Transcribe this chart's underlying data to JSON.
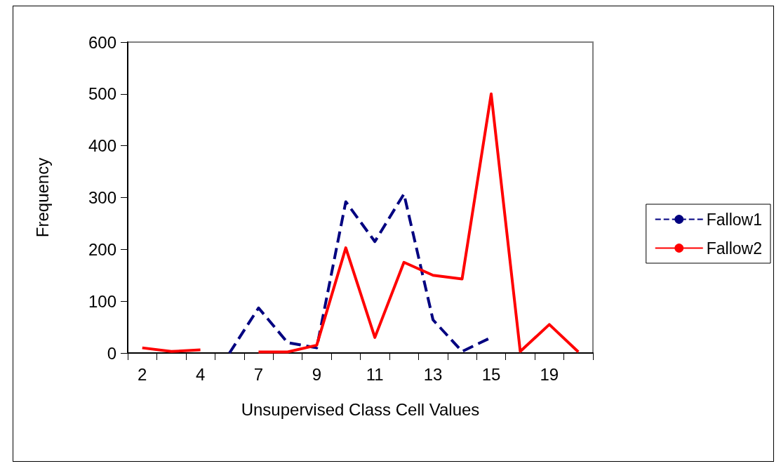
{
  "chart_data": {
    "type": "line",
    "xlabel": "Unsupervised Class Cell Values",
    "ylabel": "Frequency",
    "categories": [
      "2",
      null,
      "4",
      null,
      "7",
      null,
      "9",
      null,
      "11",
      null,
      "13",
      null,
      "15",
      null,
      "19",
      null
    ],
    "series": [
      {
        "name": "Fallow1",
        "color": "#000080",
        "line_style": "dashed",
        "values": [
          null,
          null,
          null,
          0,
          87,
          20,
          10,
          292,
          215,
          307,
          64,
          3,
          30,
          null,
          null,
          null
        ]
      },
      {
        "name": "Fallow2",
        "color": "#ff0000",
        "line_style": "solid",
        "values": [
          10,
          3,
          6,
          null,
          2,
          2,
          15,
          203,
          30,
          175,
          150,
          143,
          500,
          3,
          55,
          2
        ]
      }
    ],
    "ylim": [
      0,
      600
    ],
    "yticks": [
      0,
      100,
      200,
      300,
      400,
      500,
      600
    ],
    "grid": false,
    "legend": "right",
    "marker": "none"
  }
}
